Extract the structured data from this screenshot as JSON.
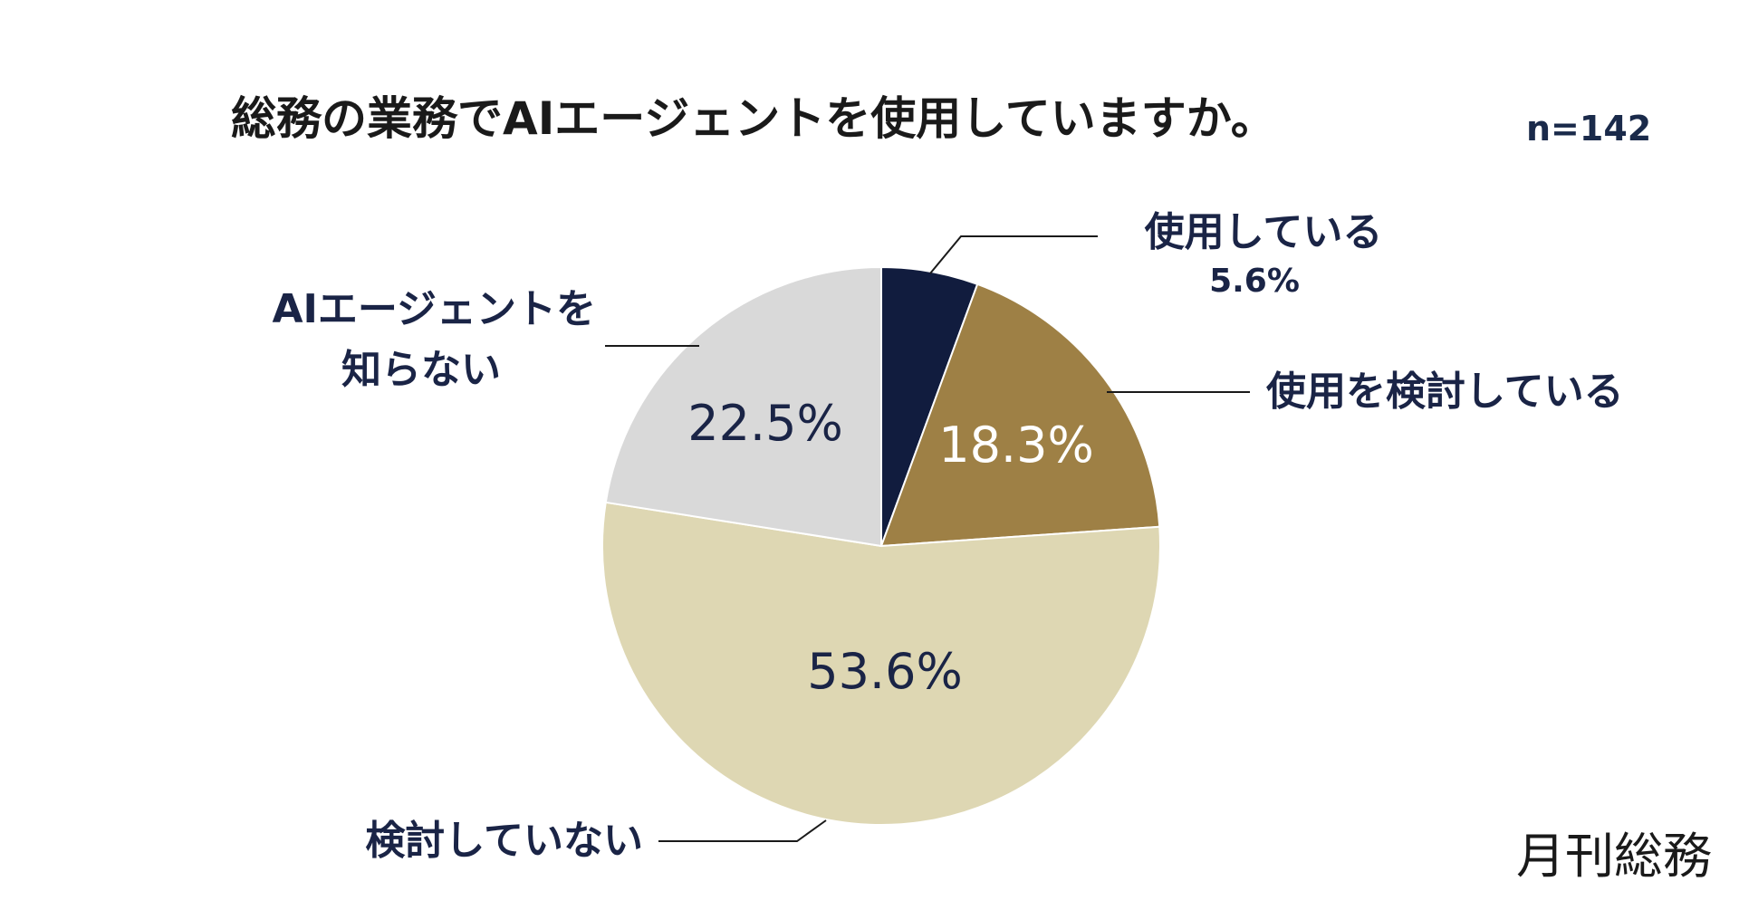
{
  "chart_data": {
    "type": "pie",
    "title": "総務の業務でAIエージェントを使用していますか。",
    "sample_size": "n=142",
    "start_angle": "12 o'clock",
    "direction": "clockwise",
    "slices": [
      {
        "label": "使用している",
        "value": 5.6,
        "value_label": "5.6%",
        "color": "#111c3e",
        "text_color": "#1a2446"
      },
      {
        "label": "使用を検討している",
        "value": 18.3,
        "value_label": "18.3%",
        "color": "#9e8045",
        "text_color": "#ffffff"
      },
      {
        "label": "検討していない",
        "value": 53.6,
        "value_label": "53.6%",
        "color": "#ded7b3",
        "text_color": "#1a2446"
      },
      {
        "label_lines": [
          "AIエージェントを",
          "知らない"
        ],
        "value": 22.5,
        "value_label": "22.5%",
        "color": "#d9d9d9",
        "text_color": "#1a2446"
      }
    ]
  },
  "brand": {
    "logo_text": "月刊総務"
  }
}
